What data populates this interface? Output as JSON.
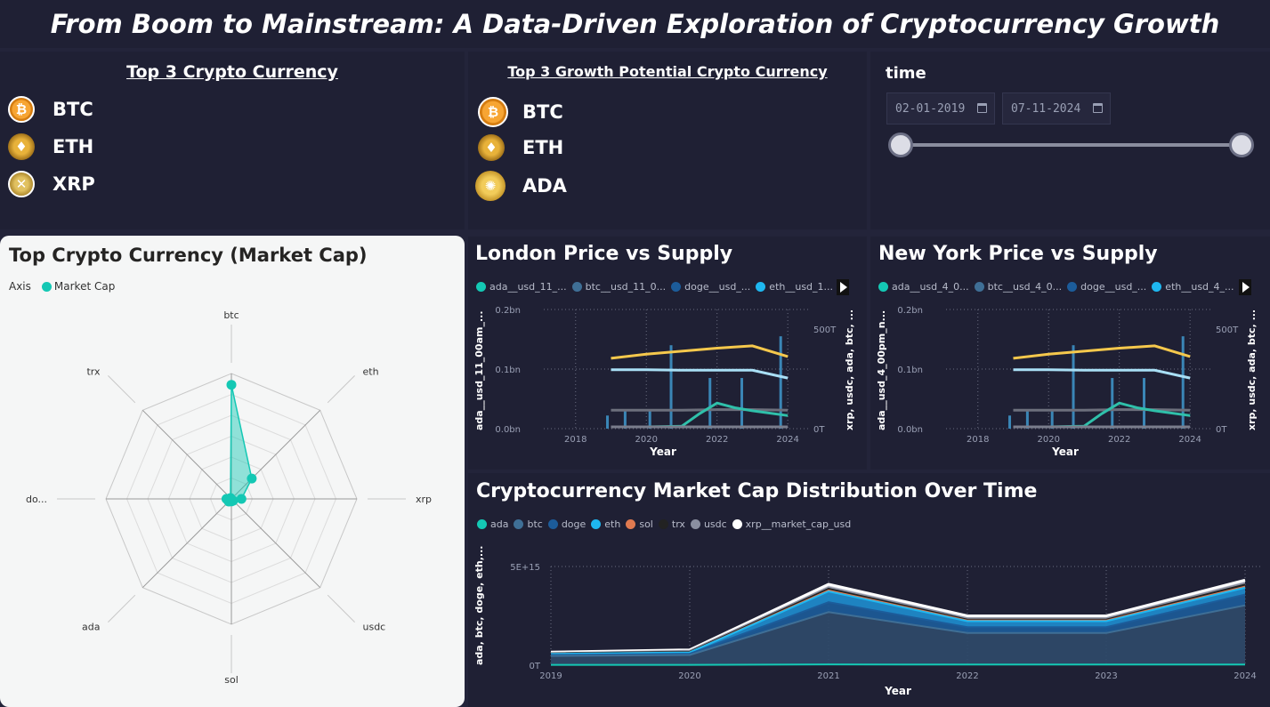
{
  "header": {
    "title": "From Boom to Mainstream: A Data-Driven Exploration of Cryptocurrency Growth"
  },
  "top3": {
    "title": "Top 3 Crypto Currency",
    "items": [
      {
        "label": "BTC",
        "icon": "bitcoin-coin-icon",
        "color": "#f7931a"
      },
      {
        "label": "ETH",
        "icon": "ethereum-coin-icon",
        "color": "#c9961a"
      },
      {
        "label": "XRP",
        "icon": "xrp-coin-icon",
        "color": "#c8a030"
      }
    ]
  },
  "growth": {
    "title": "Top 3 Growth Potential Crypto Currency",
    "items": [
      {
        "label": "BTC",
        "icon": "bitcoin-coin-icon",
        "color": "#f7931a"
      },
      {
        "label": "ETH",
        "icon": "ethereum-coin-icon",
        "color": "#c9961a"
      },
      {
        "label": "ADA",
        "icon": "cardano-coin-icon",
        "color": "#d4a62a"
      }
    ]
  },
  "time": {
    "label": "time",
    "start": "02-01-2019",
    "end": "07-11-2024",
    "range": [
      0,
      1
    ]
  },
  "radar": {
    "title": "Top Crypto Currency (Market Cap)",
    "legend_title": "Axis",
    "legend_item": "Market Cap",
    "color": "#14c8b4"
  },
  "london": {
    "title": "London Price vs Supply",
    "legend": [
      "ada__usd_11_...",
      "btc__usd_11_0...",
      "doge__usd_...",
      "eth__usd_1..."
    ],
    "y_left_label": "ada__usd_11_00am_...",
    "y_right_label": "xrp, usdc, ada, btc, ...",
    "x_label": "Year"
  },
  "newyork": {
    "title": "New York Price vs Supply",
    "legend": [
      "ada__usd_4_0...",
      "btc__usd_4_0...",
      "doge__usd_...",
      "eth__usd_4_..."
    ],
    "y_left_label": "ada__usd_4_00pm_n...",
    "y_right_label": "xrp, usdc, ada, btc, ...",
    "x_label": "Year"
  },
  "distribution": {
    "title": "Cryptocurrency Market Cap Distribution Over Time",
    "legend": [
      {
        "label": "ada",
        "color": "#14c8b4"
      },
      {
        "label": "btc",
        "color": "#3f6f96"
      },
      {
        "label": "doge",
        "color": "#1c5c9a"
      },
      {
        "label": "eth",
        "color": "#1eb7f0"
      },
      {
        "label": "sol",
        "color": "#e07a50"
      },
      {
        "label": "trx",
        "color": "#222222"
      },
      {
        "label": "usdc",
        "color": "#8a8fa0"
      },
      {
        "label": "xrp__market_cap_usd",
        "color": "#ffffff"
      }
    ],
    "y_label": "ada, btc, doge, eth,...",
    "x_label": "Year"
  },
  "chart_data": [
    {
      "type": "radar",
      "title": "Top Crypto Currency (Market Cap)",
      "legend": [
        "Market Cap"
      ],
      "categories": [
        "btc",
        "eth",
        "xrp",
        "usdc",
        "sol",
        "ada",
        "do...",
        "trx"
      ],
      "values": [
        0.91,
        0.23,
        0.08,
        0.02,
        0.02,
        0.03,
        0.04,
        0.01
      ],
      "max": 1.0
    },
    {
      "type": "line",
      "title": "London Price vs Supply",
      "xlabel": "Year",
      "x_ticks": [
        "2018",
        "2020",
        "2022",
        "2024"
      ],
      "y_ticks_left": [
        "0.0bn",
        "0.1bn",
        "0.2bn"
      ],
      "y_ticks_right": [
        "0T",
        "500T"
      ],
      "xlim": [
        2017.1,
        2024.6
      ],
      "ylim_left": [
        0,
        0.2
      ],
      "series": [
        {
          "x": [
            2019.0,
            2020.0,
            2021.0,
            2022.0,
            2023.0,
            2024.0
          ],
          "values": [
            0.118,
            0.125,
            0.13,
            0.135,
            0.139,
            0.121
          ]
        },
        {
          "x": [
            2019.0,
            2020.0,
            2021.0,
            2022.0,
            2023.0,
            2024.0
          ],
          "values": [
            0.099,
            0.099,
            0.098,
            0.098,
            0.098,
            0.085
          ]
        },
        {
          "x": [
            2019.0,
            2020.0,
            2021.0,
            2022.0,
            2023.0,
            2024.0
          ],
          "values": [
            0.031,
            0.031,
            0.031,
            0.032,
            0.032,
            0.031
          ]
        },
        {
          "x": [
            2019.0,
            2020.0,
            2021.0,
            2021.5,
            2022.0,
            2022.5,
            2023.0,
            2024.0
          ],
          "values": [
            0.003,
            0.003,
            0.004,
            0.025,
            0.043,
            0.035,
            0.03,
            0.022
          ]
        },
        {
          "x": [
            2019.0,
            2024.0
          ],
          "values": [
            0.003,
            0.003
          ]
        }
      ],
      "bars": {
        "x": [
          2018.9,
          2019.4,
          2020.1,
          2020.7,
          2021.8,
          2022.7,
          2023.8
        ],
        "values": [
          0.022,
          0.03,
          0.03,
          0.14,
          0.085,
          0.085,
          0.155
        ]
      }
    },
    {
      "type": "line",
      "title": "New York Price vs Supply",
      "xlabel": "Year",
      "x_ticks": [
        "2018",
        "2020",
        "2022",
        "2024"
      ],
      "y_ticks_left": [
        "0.0bn",
        "0.1bn",
        "0.2bn"
      ],
      "y_ticks_right": [
        "0T",
        "500T"
      ],
      "xlim": [
        2017.1,
        2024.6
      ],
      "ylim_left": [
        0,
        0.2
      ],
      "series": [
        {
          "x": [
            2019.0,
            2020.0,
            2021.0,
            2022.0,
            2023.0,
            2024.0
          ],
          "values": [
            0.118,
            0.125,
            0.13,
            0.135,
            0.139,
            0.121
          ]
        },
        {
          "x": [
            2019.0,
            2020.0,
            2021.0,
            2022.0,
            2023.0,
            2024.0
          ],
          "values": [
            0.099,
            0.099,
            0.098,
            0.098,
            0.098,
            0.085
          ]
        },
        {
          "x": [
            2019.0,
            2020.0,
            2021.0,
            2022.0,
            2023.0,
            2024.0
          ],
          "values": [
            0.031,
            0.031,
            0.031,
            0.032,
            0.032,
            0.031
          ]
        },
        {
          "x": [
            2019.0,
            2020.0,
            2021.0,
            2021.5,
            2022.0,
            2022.5,
            2023.0,
            2024.0
          ],
          "values": [
            0.003,
            0.003,
            0.004,
            0.025,
            0.043,
            0.035,
            0.03,
            0.022
          ]
        },
        {
          "x": [
            2019.0,
            2024.0
          ],
          "values": [
            0.003,
            0.003
          ]
        }
      ],
      "bars": {
        "x": [
          2018.9,
          2019.4,
          2020.1,
          2020.7,
          2021.8,
          2022.7,
          2023.8
        ],
        "values": [
          0.022,
          0.03,
          0.03,
          0.14,
          0.085,
          0.085,
          0.155
        ]
      }
    },
    {
      "type": "area",
      "title": "Cryptocurrency Market Cap Distribution Over Time",
      "xlabel": "Year",
      "categories": [
        "2019",
        "2020",
        "2021",
        "2022",
        "2023",
        "2024"
      ],
      "y_ticks": [
        "0T",
        "5E+15"
      ],
      "ylim": [
        0,
        5000000000000000.0
      ],
      "series": [
        {
          "name": "ada",
          "values": [
            20000000000000.0,
            20000000000000.0,
            40000000000000.0,
            30000000000000.0,
            30000000000000.0,
            30000000000000.0
          ]
        },
        {
          "name": "btc",
          "values": [
            450000000000000.0,
            500000000000000.0,
            2650000000000000.0,
            1600000000000000.0,
            1600000000000000.0,
            3000000000000000.0
          ]
        },
        {
          "name": "doge",
          "values": [
            50000000000000.0,
            60000000000000.0,
            500000000000000.0,
            300000000000000.0,
            300000000000000.0,
            550000000000000.0
          ]
        },
        {
          "name": "eth",
          "values": [
            50000000000000.0,
            70000000000000.0,
            550000000000000.0,
            300000000000000.0,
            300000000000000.0,
            350000000000000.0
          ]
        },
        {
          "name": "sol",
          "values": [
            0.0,
            0.0,
            50000000000000.0,
            30000000000000.0,
            30000000000000.0,
            50000000000000.0
          ]
        },
        {
          "name": "trx",
          "values": [
            30000000000000.0,
            30000000000000.0,
            80000000000000.0,
            50000000000000.0,
            50000000000000.0,
            100000000000000.0
          ]
        },
        {
          "name": "usdc",
          "values": [
            10000000000000.0,
            50000000000000.0,
            70000000000000.0,
            70000000000000.0,
            70000000000000.0,
            80000000000000.0
          ]
        },
        {
          "name": "xrp__market_cap_usd",
          "values": [
            50000000000000.0,
            50000000000000.0,
            160000000000000.0,
            120000000000000.0,
            120000000000000.0,
            150000000000000.0
          ]
        }
      ]
    }
  ]
}
